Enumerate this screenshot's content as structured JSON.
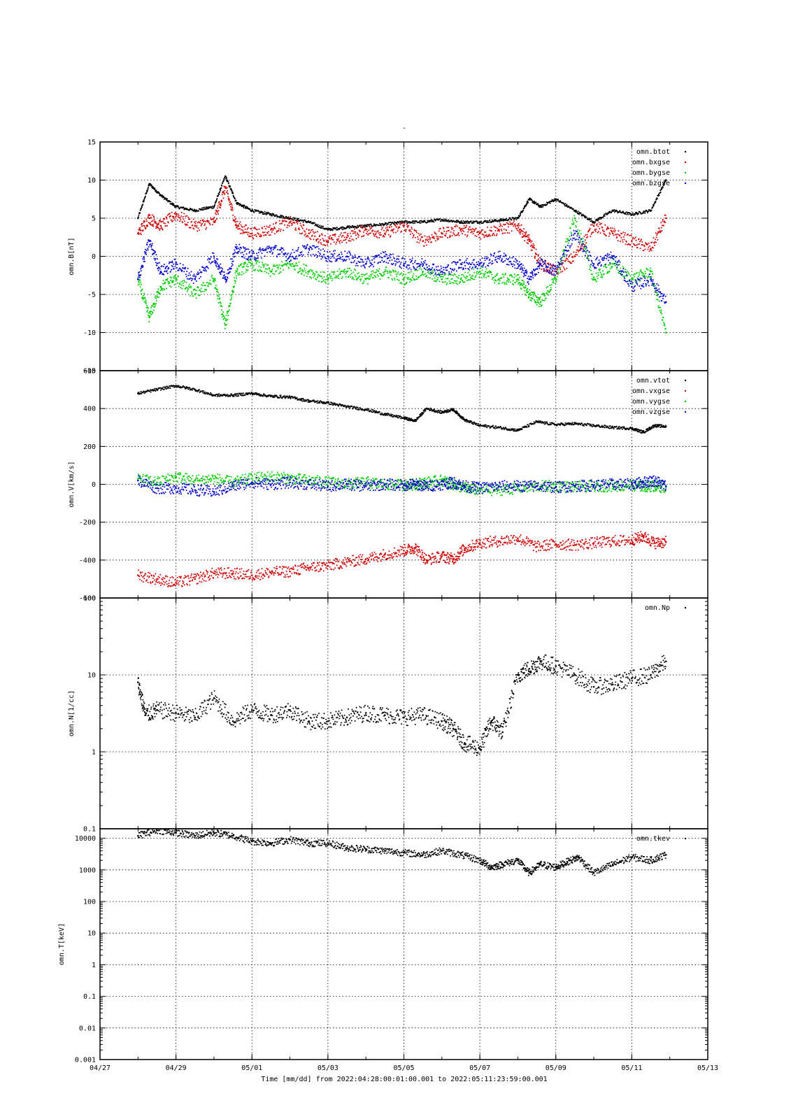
{
  "page_title": "-",
  "colors": {
    "black": "#000000",
    "red": "#d00000",
    "green": "#00cc00",
    "blue": "#0000d0",
    "grid": "#000000"
  },
  "x_axis": {
    "start": "04/27",
    "end": "05/13",
    "tick_labels": [
      "04/27",
      "04/29",
      "05/01",
      "05/03",
      "05/05",
      "05/07",
      "05/09",
      "05/11",
      "05/13"
    ],
    "label": "Time [mm/dd]  from 2022:04:28:00:01:00.001  to  2022:05:11:23:59:00.001"
  },
  "chart_data": [
    {
      "type": "scatter",
      "ylabel": "omn.B[nT]",
      "ylim": [
        -15,
        15
      ],
      "yscale": "linear",
      "yticks": [
        -15,
        -10,
        -5,
        0,
        5,
        10,
        15
      ],
      "grid": true,
      "legend_position": "top-right",
      "x": [
        "04/28",
        "04/28.3",
        "04/28.6",
        "04/29",
        "04/29.5",
        "04/30",
        "04/30.3",
        "04/30.6",
        "05/01",
        "05/01.5",
        "05/02",
        "05/02.5",
        "05/03",
        "05/03.5",
        "05/04",
        "05/04.5",
        "05/05",
        "05/05.5",
        "05/06",
        "05/06.5",
        "05/07",
        "05/07.5",
        "05/08",
        "05/08.3",
        "05/08.6",
        "05/09",
        "05/09.5",
        "05/10",
        "05/10.5",
        "05/11",
        "05/11.5",
        "05/11.9"
      ],
      "series": [
        {
          "name": "omn.btot",
          "color": "#000000",
          "values": [
            5,
            9.5,
            8,
            6.5,
            6,
            6.5,
            10.5,
            7,
            6,
            5.5,
            5,
            4.5,
            3.5,
            3.8,
            4,
            4.2,
            4.5,
            4.5,
            4.8,
            4.5,
            4.5,
            4.7,
            5,
            7.5,
            6.5,
            7.5,
            6,
            4.5,
            6,
            5.5,
            6,
            10
          ]
        },
        {
          "name": "omn.bxgse",
          "color": "#d00000",
          "values": [
            3,
            5,
            4,
            5.5,
            4,
            4.5,
            9,
            4,
            3,
            3.5,
            4.5,
            3,
            2,
            2.5,
            3.5,
            3,
            4,
            2,
            3,
            3.5,
            3,
            3.5,
            4,
            2,
            -1,
            -2,
            0,
            4,
            3,
            2,
            1,
            5
          ]
        },
        {
          "name": "omn.bygse",
          "color": "#00cc00",
          "values": [
            -3,
            -8,
            -4,
            -3,
            -5,
            -3,
            -9,
            -2,
            -1,
            -2,
            -1,
            -2,
            -3,
            -2,
            -3,
            -2,
            -3,
            -2,
            -3,
            -3,
            -2,
            -3,
            -3,
            -5,
            -6,
            -3,
            5,
            -3,
            -1,
            -3,
            -2,
            -10
          ]
        },
        {
          "name": "omn.bzgse",
          "color": "#0000d0",
          "values": [
            -3,
            2,
            -2,
            -1,
            -3,
            0,
            -3,
            1,
            0,
            1,
            0,
            1,
            0,
            0,
            -1,
            0,
            -1,
            -1,
            -2,
            -1,
            -1,
            0,
            -1,
            -3,
            -1,
            -2,
            3,
            -1,
            0,
            -4,
            -3,
            -6
          ]
        }
      ]
    },
    {
      "type": "scatter",
      "ylabel": "omn.V[km/s]",
      "ylim": [
        -600,
        600
      ],
      "yscale": "linear",
      "yticks": [
        -600,
        -400,
        -200,
        0,
        200,
        400,
        600
      ],
      "grid": true,
      "legend_position": "top-right",
      "x": [
        "04/28",
        "04/28.5",
        "04/29",
        "04/29.5",
        "04/30",
        "04/30.5",
        "05/01",
        "05/01.5",
        "05/02",
        "05/02.5",
        "05/03",
        "05/03.5",
        "05/04",
        "05/04.5",
        "05/05",
        "05/05.3",
        "05/05.6",
        "05/06",
        "05/06.3",
        "05/06.6",
        "05/07",
        "05/07.5",
        "05/08",
        "05/08.5",
        "05/09",
        "05/09.5",
        "05/10",
        "05/10.5",
        "05/11",
        "05/11.3",
        "05/11.6",
        "05/11.9"
      ],
      "series": [
        {
          "name": "omn.vtot",
          "color": "#000000",
          "values": [
            480,
            500,
            520,
            500,
            470,
            470,
            480,
            465,
            460,
            440,
            430,
            410,
            395,
            370,
            350,
            335,
            400,
            380,
            395,
            340,
            310,
            300,
            285,
            330,
            315,
            320,
            310,
            300,
            295,
            275,
            310,
            305
          ]
        },
        {
          "name": "omn.vxgse",
          "color": "#d00000",
          "values": [
            -480,
            -500,
            -520,
            -500,
            -470,
            -470,
            -480,
            -465,
            -460,
            -440,
            -430,
            -410,
            -395,
            -370,
            -350,
            -335,
            -400,
            -380,
            -395,
            -340,
            -310,
            -300,
            -285,
            -330,
            -315,
            -320,
            -310,
            -300,
            -295,
            -275,
            -310,
            -305
          ]
        },
        {
          "name": "omn.vygse",
          "color": "#00cc00",
          "values": [
            30,
            10,
            40,
            20,
            30,
            10,
            30,
            40,
            30,
            20,
            10,
            0,
            10,
            0,
            -5,
            0,
            10,
            20,
            0,
            -20,
            -30,
            -30,
            -20,
            -10,
            -10,
            -15,
            -10,
            -10,
            -5,
            -10,
            -10,
            -15
          ]
        },
        {
          "name": "omn.vzgse",
          "color": "#0000d0",
          "values": [
            20,
            -20,
            -20,
            -30,
            -40,
            -10,
            10,
            0,
            10,
            0,
            -10,
            0,
            -10,
            0,
            -5,
            0,
            -10,
            0,
            10,
            -10,
            -20,
            -10,
            -10,
            -10,
            -15,
            -10,
            -5,
            0,
            0,
            10,
            20,
            -10
          ]
        }
      ]
    },
    {
      "type": "scatter",
      "ylabel": "omn.N[1/cc]",
      "ylim": [
        0.1,
        100
      ],
      "yscale": "log",
      "yticks": [
        0.1,
        1,
        10,
        100
      ],
      "ytick_labels": [
        "0.1",
        "1",
        "10",
        "100"
      ],
      "grid": true,
      "legend_position": "top-right",
      "x": [
        "04/28",
        "04/28.2",
        "04/28.5",
        "04/29",
        "04/29.5",
        "04/30",
        "04/30.5",
        "05/01",
        "05/01.5",
        "05/02",
        "05/02.5",
        "05/03",
        "05/03.5",
        "05/04",
        "05/04.5",
        "05/05",
        "05/05.5",
        "05/06",
        "05/06.3",
        "05/06.6",
        "05/07",
        "05/07.3",
        "05/07.6",
        "05/08",
        "05/08.3",
        "05/08.6",
        "05/09",
        "05/09.5",
        "05/10",
        "05/10.5",
        "05/11",
        "05/11.5",
        "05/11.9"
      ],
      "series": [
        {
          "name": "omn.Np",
          "color": "#000000",
          "values": [
            8,
            3,
            3.5,
            3.2,
            2.8,
            5,
            2.5,
            3.5,
            3,
            3.5,
            2.5,
            2.5,
            2.8,
            3.2,
            3,
            2.8,
            3,
            2.5,
            2,
            1.3,
            1.1,
            2.5,
            1.8,
            10,
            12,
            15,
            13,
            10,
            7,
            7.5,
            9,
            10,
            15
          ]
        }
      ]
    },
    {
      "type": "scatter",
      "ylabel": "omn.T[keV]",
      "ylim": [
        0.001,
        20000
      ],
      "yscale": "log",
      "yticks": [
        0.001,
        0.01,
        0.1,
        1,
        10,
        100,
        1000,
        10000
      ],
      "ytick_labels": [
        "0.001",
        "0.01",
        "0.1",
        "1",
        "10",
        "100",
        "1000",
        "10000"
      ],
      "grid": true,
      "legend_position": "top-right",
      "x": [
        "04/28",
        "04/28.5",
        "04/29",
        "04/29.5",
        "04/30",
        "04/30.5",
        "05/01",
        "05/01.5",
        "05/02",
        "05/02.5",
        "05/03",
        "05/03.5",
        "05/04",
        "05/04.5",
        "05/05",
        "05/05.5",
        "05/06",
        "05/06.5",
        "05/07",
        "05/07.3",
        "05/07.6",
        "05/08",
        "05/08.3",
        "05/08.6",
        "05/09",
        "05/09.3",
        "05/09.6",
        "05/10",
        "05/10.5",
        "05/11",
        "05/11.5",
        "05/11.9"
      ],
      "series": [
        {
          "name": "omn.tkev",
          "color": "#000000",
          "values": [
            12000,
            18000,
            15000,
            12000,
            15000,
            12000,
            8000,
            7000,
            9000,
            7000,
            7000,
            5000,
            4500,
            4000,
            3500,
            3000,
            4000,
            3000,
            2000,
            1200,
            1500,
            2000,
            800,
            1500,
            1200,
            1800,
            2500,
            800,
            1500,
            2500,
            2000,
            3000
          ]
        }
      ]
    }
  ]
}
